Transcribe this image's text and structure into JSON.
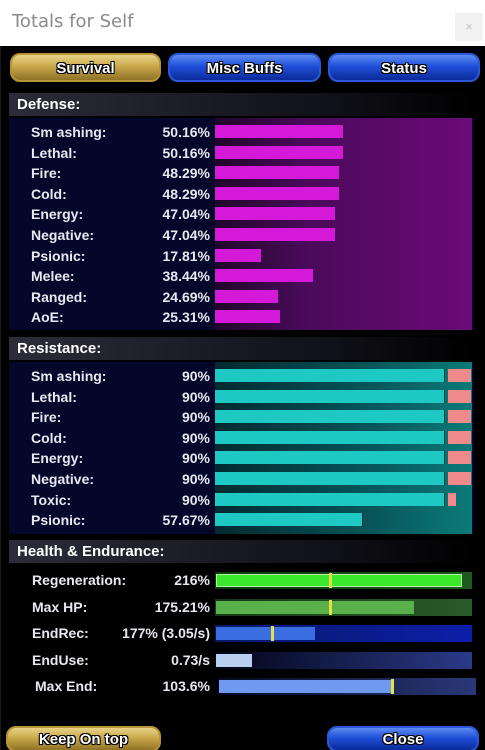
{
  "window": {
    "title": "Totals for Self",
    "close_glyph": "×"
  },
  "tabs": [
    {
      "label": "Survival",
      "active": true
    },
    {
      "label": "Misc Buffs",
      "active": false
    },
    {
      "label": "Status",
      "active": false
    }
  ],
  "defense": {
    "heading": "Defense:",
    "color": "#d41ad8",
    "rows": [
      {
        "label": "Sm ashing:",
        "value": "50.16%",
        "fill": 0.5016
      },
      {
        "label": "Lethal:",
        "value": "50.16%",
        "fill": 0.5016
      },
      {
        "label": "Fire:",
        "value": "48.29%",
        "fill": 0.4829
      },
      {
        "label": "Cold:",
        "value": "48.29%",
        "fill": 0.4829
      },
      {
        "label": "Energy:",
        "value": "47.04%",
        "fill": 0.4704
      },
      {
        "label": "Negative:",
        "value": "47.04%",
        "fill": 0.4704
      },
      {
        "label": "Psionic:",
        "value": "17.81%",
        "fill": 0.1781
      },
      {
        "label": "Melee:",
        "value": "38.44%",
        "fill": 0.3844
      },
      {
        "label": "Ranged:",
        "value": "24.69%",
        "fill": 0.2469
      },
      {
        "label": "AoE:",
        "value": "25.31%",
        "fill": 0.2531
      }
    ]
  },
  "resistance": {
    "heading": "Resistance:",
    "color": "#1ec9c4",
    "over_color": "#f08a8a",
    "rows": [
      {
        "label": "Sm ashing:",
        "value": "90%",
        "fill": 0.9,
        "over": true
      },
      {
        "label": "Lethal:",
        "value": "90%",
        "fill": 0.9,
        "over": true
      },
      {
        "label": "Fire:",
        "value": "90%",
        "fill": 0.9,
        "over": true
      },
      {
        "label": "Cold:",
        "value": "90%",
        "fill": 0.9,
        "over": true
      },
      {
        "label": "Energy:",
        "value": "90%",
        "fill": 0.9,
        "over": true
      },
      {
        "label": "Negative:",
        "value": "90%",
        "fill": 0.9,
        "over": true
      },
      {
        "label": "Toxic:",
        "value": "90%",
        "fill": 0.9,
        "over": true
      },
      {
        "label": "Psionic:",
        "value": "57.67%",
        "fill": 0.5767,
        "over": false
      }
    ]
  },
  "health": {
    "heading": "Health & Endurance:",
    "rows": [
      {
        "label": "Regeneration:",
        "value": "216%",
        "fill": 0.97,
        "marker": 0.45,
        "color": "#3ce82c"
      },
      {
        "label": "Max HP:",
        "value": "175.21%",
        "fill": 0.78,
        "marker": 0.45,
        "color": "#5ab04a"
      },
      {
        "label": "EndRec:",
        "value": "177% (3.05/s)",
        "fill": 0.39,
        "marker": 0.22,
        "color": "#3a6ee0"
      },
      {
        "label": "EndUse:",
        "value": "0.73/s",
        "fill": 0.14,
        "marker": null,
        "color": "#b8cff0"
      },
      {
        "label": "Max End:",
        "value": "103.6%",
        "fill": 0.68,
        "marker": 0.68,
        "color": "#6f9af0"
      }
    ]
  },
  "buttons": {
    "keep_on_top": "Keep On top",
    "close": "Close"
  }
}
